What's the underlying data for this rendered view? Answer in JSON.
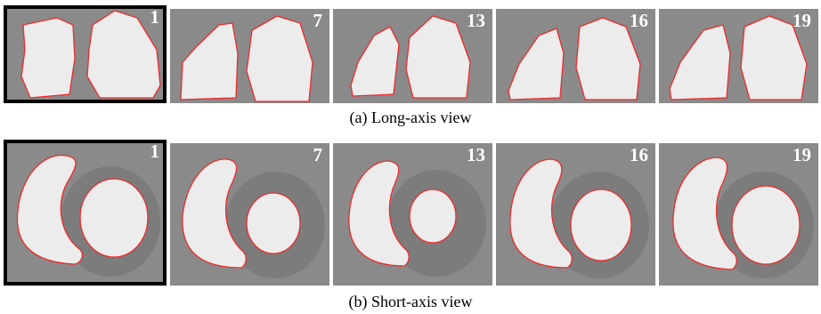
{
  "long_axis": {
    "caption": "(a) Long-axis view",
    "frames": [
      {
        "label": "1",
        "selected": true
      },
      {
        "label": "7",
        "selected": false
      },
      {
        "label": "13",
        "selected": false
      },
      {
        "label": "16",
        "selected": false
      },
      {
        "label": "19",
        "selected": false
      }
    ]
  },
  "short_axis": {
    "caption": "(b) Short-axis view",
    "frames": [
      {
        "label": "1",
        "selected": true
      },
      {
        "label": "7",
        "selected": false
      },
      {
        "label": "13",
        "selected": false
      },
      {
        "label": "16",
        "selected": false
      },
      {
        "label": "19",
        "selected": false
      }
    ]
  },
  "colors": {
    "contour": "#ee2a2a",
    "tissue": "#8a8a8a",
    "blood_pool": "#ececec",
    "selection_border": "#000000"
  }
}
